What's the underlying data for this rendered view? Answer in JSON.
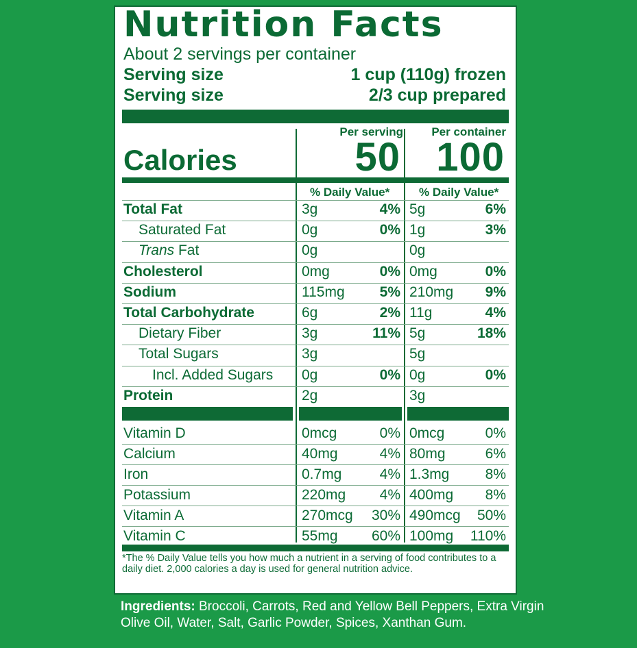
{
  "label": {
    "title": "Nutrition Facts",
    "servings_per_container": "About 2 servings per container",
    "serving_size_1": {
      "label": "Serving size",
      "value": "1 cup (110g) frozen"
    },
    "serving_size_2": {
      "label": "Serving size",
      "value": "2/3 cup prepared"
    },
    "per_serving_header": "Per serving",
    "per_container_header": "Per container",
    "calories_label": "Calories",
    "calories_per_serving": "50",
    "calories_per_container": "100",
    "dv_header": "% Daily Value*",
    "nutrients": [
      {
        "label": "Total Fat",
        "bold": true,
        "indent": 0,
        "s_amt": "3g",
        "s_pct": "4%",
        "c_amt": "5g",
        "c_pct": "6%"
      },
      {
        "label": "Saturated Fat",
        "bold": false,
        "indent": 1,
        "s_amt": "0g",
        "s_pct": "0%",
        "c_amt": "1g",
        "c_pct": "3%"
      },
      {
        "label_italic": "Trans",
        "label": " Fat",
        "bold": false,
        "indent": 1,
        "s_amt": "0g",
        "s_pct": "",
        "c_amt": "0g",
        "c_pct": ""
      },
      {
        "label": "Cholesterol",
        "bold": true,
        "indent": 0,
        "s_amt": "0mg",
        "s_pct": "0%",
        "c_amt": "0mg",
        "c_pct": "0%"
      },
      {
        "label": "Sodium",
        "bold": true,
        "indent": 0,
        "s_amt": "115mg",
        "s_pct": "5%",
        "c_amt": "210mg",
        "c_pct": "9%"
      },
      {
        "label": "Total Carbohydrate",
        "bold": true,
        "indent": 0,
        "s_amt": "6g",
        "s_pct": "2%",
        "c_amt": "11g",
        "c_pct": "4%"
      },
      {
        "label": "Dietary Fiber",
        "bold": false,
        "indent": 1,
        "s_amt": "3g",
        "s_pct": "11%",
        "c_amt": "5g",
        "c_pct": "18%"
      },
      {
        "label": "Total Sugars",
        "bold": false,
        "indent": 1,
        "s_amt": "3g",
        "s_pct": "",
        "c_amt": "5g",
        "c_pct": ""
      },
      {
        "label": "Incl. Added Sugars",
        "bold": false,
        "indent": 2,
        "s_amt": "0g",
        "s_pct": "0%",
        "c_amt": "0g",
        "c_pct": "0%"
      },
      {
        "label": "Protein",
        "bold": true,
        "indent": 0,
        "s_amt": "2g",
        "s_pct": "",
        "c_amt": "3g",
        "c_pct": ""
      }
    ],
    "vitamins": [
      {
        "label": "Vitamin D",
        "s_amt": "0mcg",
        "s_pct": "0%",
        "c_amt": "0mcg",
        "c_pct": "0%"
      },
      {
        "label": "Calcium",
        "s_amt": "40mg",
        "s_pct": "4%",
        "c_amt": "80mg",
        "c_pct": "6%"
      },
      {
        "label": "Iron",
        "s_amt": "0.7mg",
        "s_pct": "4%",
        "c_amt": "1.3mg",
        "c_pct": "8%"
      },
      {
        "label": "Potassium",
        "s_amt": "220mg",
        "s_pct": "4%",
        "c_amt": "400mg",
        "c_pct": "8%"
      },
      {
        "label": "Vitamin A",
        "s_amt": "270mcg",
        "s_pct": "30%",
        "c_amt": "490mcg",
        "c_pct": "50%"
      },
      {
        "label": "Vitamin C",
        "s_amt": "55mg",
        "s_pct": "60%",
        "c_amt": "100mg",
        "c_pct": "110%"
      }
    ],
    "footnote": "*The % Daily Value tells you how much a nutrient in a serving of food contributes to a daily diet. 2,000 calories a day is used for general nutrition advice."
  },
  "ingredients": {
    "heading": "Ingredients:",
    "text": " Broccoli, Carrots, Red and Yellow Bell Peppers, Extra Virgin Olive Oil, Water, Salt, Garlic Powder, Spices,  Xanthan Gum."
  },
  "colors": {
    "background": "#1b9a48",
    "label_green": "#0b6a34",
    "panel": "#ffffff"
  }
}
